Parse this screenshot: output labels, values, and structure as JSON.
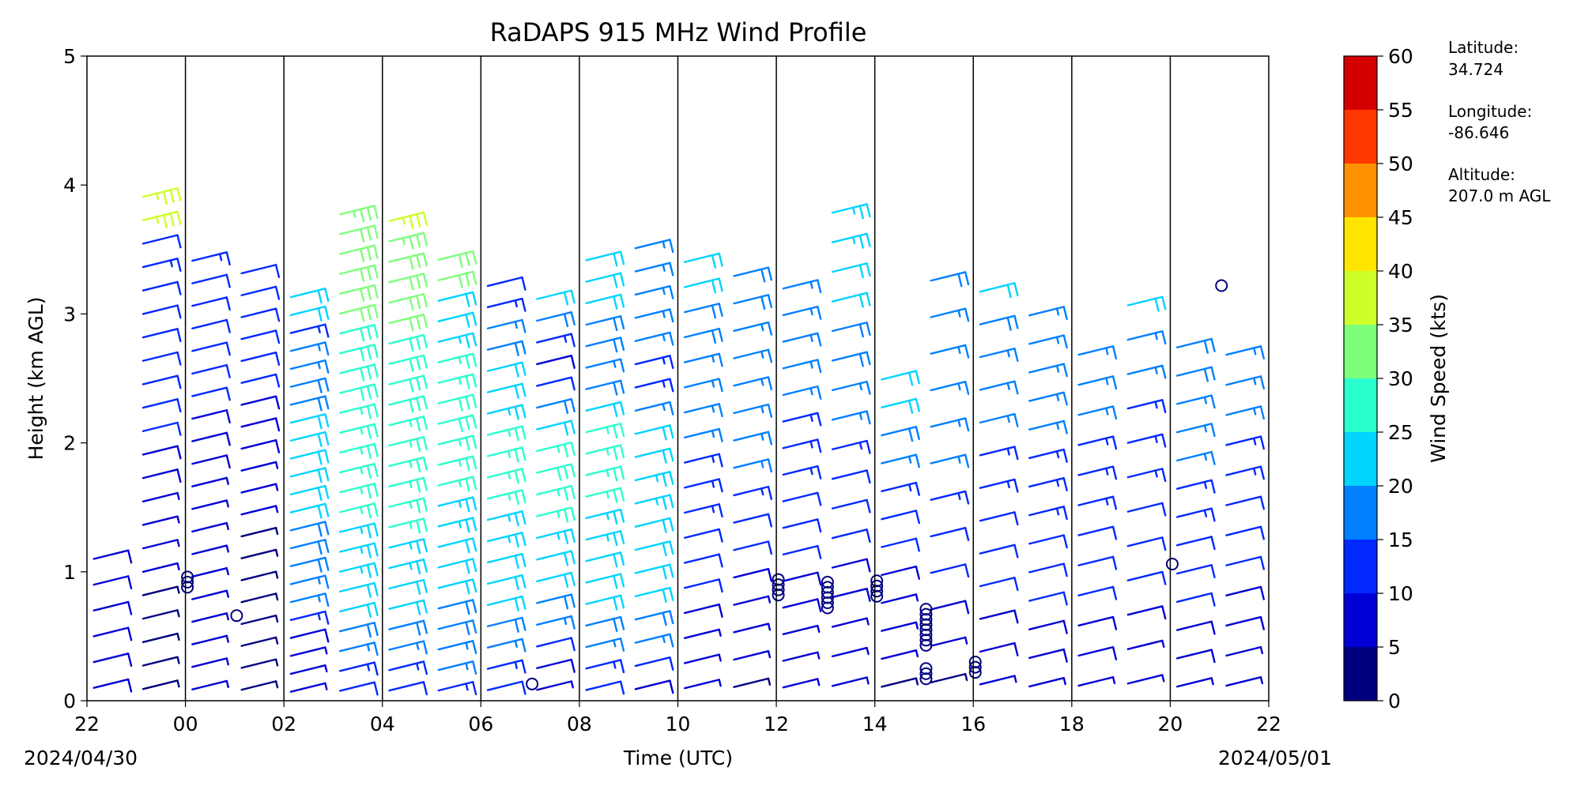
{
  "chart_data": {
    "type": "wind-barb",
    "title": "RaDAPS 915 MHz Wind Profile",
    "xlabel": "Time (UTC)",
    "ylabel": "Height (km AGL)",
    "x_ticks": [
      "22",
      "00",
      "02",
      "04",
      "06",
      "08",
      "10",
      "12",
      "14",
      "16",
      "18",
      "20",
      "22"
    ],
    "x_start_date": "2024/04/30",
    "x_end_date": "2024/05/01",
    "x_range_hours": [
      0,
      24
    ],
    "ylim": [
      0,
      5
    ],
    "y_ticks": [
      "0",
      "1",
      "2",
      "3",
      "4",
      "5"
    ],
    "hourly_columns": [
      {
        "hour": 0,
        "top_km": 1.2,
        "speeds": [
          8,
          8,
          8,
          8,
          8,
          8
        ]
      },
      {
        "hour": 1,
        "top_km": 4.0,
        "speeds": [
          3,
          3,
          3,
          3,
          3,
          5,
          5,
          7,
          7,
          9,
          9,
          11,
          11,
          11,
          11,
          12,
          12,
          12,
          13,
          12,
          36,
          36
        ]
      },
      {
        "hour": 2,
        "top_km": 3.5,
        "speeds": [
          7,
          7,
          5,
          5,
          5,
          5,
          5,
          5,
          7,
          7,
          9,
          9,
          9,
          11,
          11,
          11,
          11,
          12,
          12,
          13
        ]
      },
      {
        "hour": 3,
        "top_km": 3.4,
        "speeds": [
          3,
          3,
          3,
          3,
          4,
          4,
          4,
          4,
          5,
          6,
          7,
          8,
          9,
          9,
          10,
          10,
          10,
          11,
          11,
          12
        ]
      },
      {
        "hour": 4,
        "top_km": 3.2,
        "speeds": [
          6,
          6,
          7,
          8,
          14,
          16,
          17,
          18,
          18,
          19,
          20,
          21,
          22,
          22,
          20,
          20,
          18,
          18,
          16,
          15,
          14,
          22,
          22
        ]
      },
      {
        "hour": 5,
        "top_km": 3.85,
        "speeds": [
          10,
          13,
          16,
          18,
          20,
          22,
          23,
          24,
          24,
          25,
          25,
          26,
          26,
          27,
          27,
          28,
          28,
          29,
          29,
          30,
          30,
          31,
          31,
          32,
          34
        ]
      },
      {
        "hour": 6,
        "top_km": 3.8,
        "speeds": [
          12,
          14,
          17,
          19,
          21,
          22,
          23,
          24,
          25,
          25,
          26,
          26,
          27,
          27,
          28,
          28,
          29,
          29,
          30,
          30,
          31,
          32,
          33,
          35
        ]
      },
      {
        "hour": 7,
        "top_km": 3.5,
        "speeds": [
          13,
          15,
          17,
          18,
          19,
          20,
          21,
          22,
          23,
          24,
          25,
          26,
          27,
          28,
          28,
          27,
          25,
          23,
          21,
          20,
          30,
          31
        ]
      },
      {
        "hour": 8,
        "top_km": 3.3,
        "speeds": [
          12,
          14,
          16,
          18,
          20,
          21,
          22,
          23,
          24,
          25,
          26,
          27,
          26,
          24,
          22,
          20,
          18,
          16,
          14,
          12
        ]
      },
      {
        "hour": 9,
        "top_km": 3.2,
        "speeds": [
          5,
          8,
          12,
          16,
          18,
          20,
          22,
          24,
          26,
          27,
          28,
          26,
          22,
          18,
          12,
          8,
          14,
          18,
          20
        ]
      },
      {
        "hour": 10,
        "top_km": 3.5,
        "speeds": [
          10,
          14,
          17,
          19,
          20,
          21,
          22,
          23,
          24,
          25,
          26,
          27,
          25,
          20,
          18,
          17,
          18,
          19,
          20,
          21,
          22
        ]
      },
      {
        "hour": 11,
        "top_km": 3.6,
        "speeds": [
          8,
          12,
          16,
          19,
          20,
          21,
          22,
          22,
          23,
          23,
          22,
          20,
          16,
          14,
          14,
          15,
          15,
          16,
          16,
          17
        ]
      },
      {
        "hour": 12,
        "top_km": 3.5,
        "speeds": [
          5,
          6,
          7,
          8,
          10,
          12,
          12,
          13,
          14,
          14,
          15,
          15,
          16,
          17,
          18,
          19,
          20,
          21
        ]
      },
      {
        "hour": 13,
        "top_km": 3.4,
        "speeds": [
          4,
          5,
          6,
          7,
          8,
          10,
          12,
          14,
          15,
          15,
          16,
          16,
          17,
          17,
          18,
          19
        ]
      },
      {
        "hour": 14,
        "top_km": 3.3,
        "speeds": [
          5,
          6,
          7,
          8,
          9,
          10,
          11,
          12,
          13,
          14,
          14,
          15,
          15,
          16,
          16,
          17
        ]
      },
      {
        "hour": 15,
        "top_km": 3.9,
        "speeds": [
          5,
          6,
          7,
          8,
          9,
          10,
          11,
          12,
          14,
          16,
          17,
          18,
          19,
          20,
          22,
          23,
          24
        ]
      },
      {
        "hour": 16,
        "top_km": 2.6,
        "speeds": [
          3,
          5,
          6,
          7,
          8,
          10,
          12,
          14,
          16,
          18,
          20,
          22
        ]
      },
      {
        "hour": 17,
        "top_km": 3.4,
        "speeds": [
          4,
          6,
          8,
          10,
          12,
          14,
          15,
          16,
          16,
          17,
          17,
          18
        ]
      },
      {
        "hour": 18,
        "top_km": 3.3,
        "speeds": [
          6,
          8,
          9,
          10,
          11,
          12,
          13,
          14,
          15,
          16,
          17,
          18,
          20
        ]
      },
      {
        "hour": 19,
        "top_km": 3.1,
        "speeds": [
          7,
          8,
          9,
          10,
          11,
          12,
          13,
          14,
          14,
          15,
          15,
          16,
          16,
          17
        ]
      },
      {
        "hour": 20,
        "top_km": 2.8,
        "speeds": [
          7,
          8,
          9,
          10,
          11,
          12,
          13,
          14,
          14,
          15,
          15,
          16
        ]
      },
      {
        "hour": 21,
        "top_km": 3.2,
        "speeds": [
          5,
          7,
          9,
          10,
          11,
          12,
          13,
          14,
          14,
          15,
          16,
          22
        ]
      },
      {
        "hour": 22,
        "top_km": 2.85,
        "speeds": [
          7,
          8,
          9,
          10,
          11,
          12,
          13,
          14,
          15,
          16,
          17,
          18,
          19
        ]
      },
      {
        "hour": 23,
        "top_km": 2.8,
        "speeds": [
          6,
          7,
          8,
          9,
          10,
          11,
          12,
          13,
          14,
          15,
          16,
          17
        ]
      }
    ],
    "calm_markers": [
      {
        "hour": 2,
        "km": 0.96
      },
      {
        "hour": 2,
        "km": 0.92
      },
      {
        "hour": 2,
        "km": 0.88
      },
      {
        "hour": 3,
        "km": 0.66
      },
      {
        "hour": 9,
        "km": 0.13
      },
      {
        "hour": 14,
        "km": 0.94
      },
      {
        "hour": 14,
        "km": 0.9
      },
      {
        "hour": 14,
        "km": 0.86
      },
      {
        "hour": 14,
        "km": 0.82
      },
      {
        "hour": 15,
        "km": 0.92
      },
      {
        "hour": 15,
        "km": 0.88
      },
      {
        "hour": 15,
        "km": 0.84
      },
      {
        "hour": 15,
        "km": 0.8
      },
      {
        "hour": 15,
        "km": 0.76
      },
      {
        "hour": 15,
        "km": 0.72
      },
      {
        "hour": 16,
        "km": 0.93
      },
      {
        "hour": 16,
        "km": 0.89
      },
      {
        "hour": 16,
        "km": 0.85
      },
      {
        "hour": 16,
        "km": 0.81
      },
      {
        "hour": 17,
        "km": 0.71
      },
      {
        "hour": 17,
        "km": 0.67
      },
      {
        "hour": 17,
        "km": 0.63
      },
      {
        "hour": 17,
        "km": 0.59
      },
      {
        "hour": 17,
        "km": 0.55
      },
      {
        "hour": 17,
        "km": 0.51
      },
      {
        "hour": 17,
        "km": 0.47
      },
      {
        "hour": 17,
        "km": 0.43
      },
      {
        "hour": 17,
        "km": 0.25
      },
      {
        "hour": 17,
        "km": 0.21
      },
      {
        "hour": 17,
        "km": 0.17
      },
      {
        "hour": 18,
        "km": 0.3
      },
      {
        "hour": 18,
        "km": 0.26
      },
      {
        "hour": 18,
        "km": 0.22
      },
      {
        "hour": 22,
        "km": 1.06
      },
      {
        "hour": 23,
        "km": 3.22
      }
    ],
    "colorbar": {
      "label": "Wind Speed (kts)",
      "bounds": [
        0,
        5,
        10,
        15,
        20,
        25,
        30,
        35,
        40,
        45,
        50,
        55,
        60
      ],
      "tick_labels": [
        "0",
        "5",
        "10",
        "15",
        "20",
        "25",
        "30",
        "35",
        "40",
        "45",
        "50",
        "55",
        "60"
      ],
      "colors": [
        "#00007f",
        "#0000d6",
        "#0028ff",
        "#0080ff",
        "#00d4ff",
        "#29ffce",
        "#7dff7a",
        "#ceff29",
        "#ffe600",
        "#ff9100",
        "#ff3800",
        "#d40000",
        "#7f0000"
      ]
    }
  },
  "info": {
    "latitude_label": "Latitude:",
    "latitude_value": "34.724",
    "longitude_label": "Longitude:",
    "longitude_value": "-86.646",
    "altitude_label": "Altitude:",
    "altitude_value": "207.0 m AGL"
  }
}
